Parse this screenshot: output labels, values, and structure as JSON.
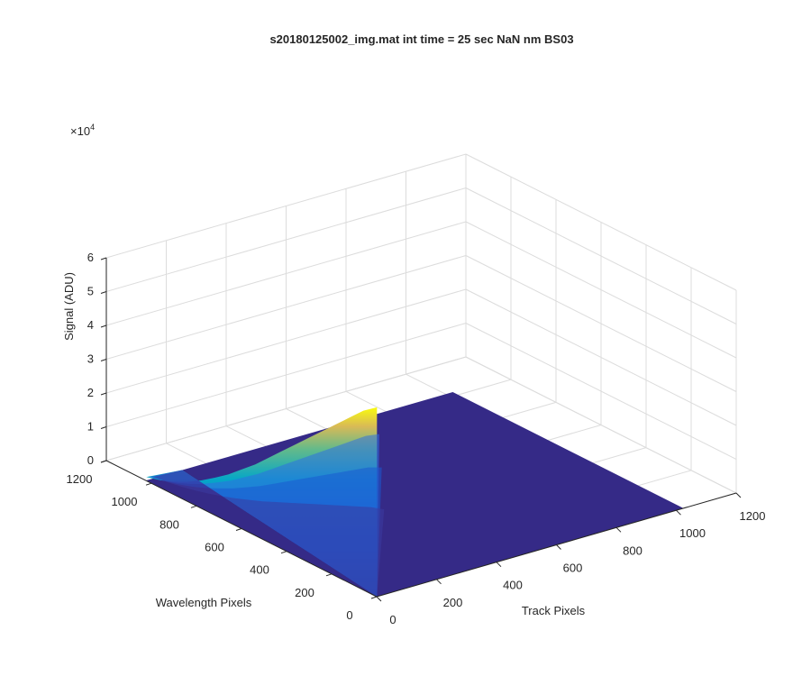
{
  "chart_data": {
    "type": "surface",
    "title": "s20180125002_img.mat int time = 25 sec  NaN nm BS03",
    "xlabel": "Track Pixels",
    "ylabel": "Wavelength Pixels",
    "zlabel": "Signal (ADU)",
    "z_multiplier_label": "×10",
    "z_multiplier_exponent": "4",
    "xlim": [
      0,
      1200
    ],
    "ylim": [
      0,
      1200
    ],
    "zlim": [
      0,
      60000
    ],
    "xticks": [
      "0",
      "200",
      "400",
      "600",
      "800",
      "1000",
      "1200"
    ],
    "yticks": [
      "0",
      "200",
      "400",
      "600",
      "800",
      "1000",
      "1200"
    ],
    "zticks": [
      "0",
      "1",
      "2",
      "3",
      "4",
      "5",
      "6"
    ],
    "grid": true,
    "colormap": "parula",
    "data_extent": {
      "track_max": 1024,
      "wavelength_max": 1024
    },
    "ridge": {
      "track_start": 1,
      "wavelength_range": [
        1,
        1024
      ],
      "peak_signal_at_wavelength": [
        [
          0,
          56000
        ],
        [
          60,
          53000
        ],
        [
          120,
          49000
        ],
        [
          180,
          45000
        ],
        [
          240,
          41000
        ],
        [
          300,
          37000
        ],
        [
          360,
          33000
        ],
        [
          420,
          29000
        ],
        [
          480,
          25000
        ],
        [
          540,
          21000
        ],
        [
          600,
          17500
        ],
        [
          660,
          14000
        ],
        [
          720,
          11000
        ],
        [
          780,
          8200
        ],
        [
          840,
          5800
        ],
        [
          900,
          3800
        ],
        [
          960,
          2200
        ],
        [
          1024,
          1000
        ]
      ],
      "inner_band_fractions": [
        0.95,
        0.75,
        0.5
      ]
    }
  }
}
